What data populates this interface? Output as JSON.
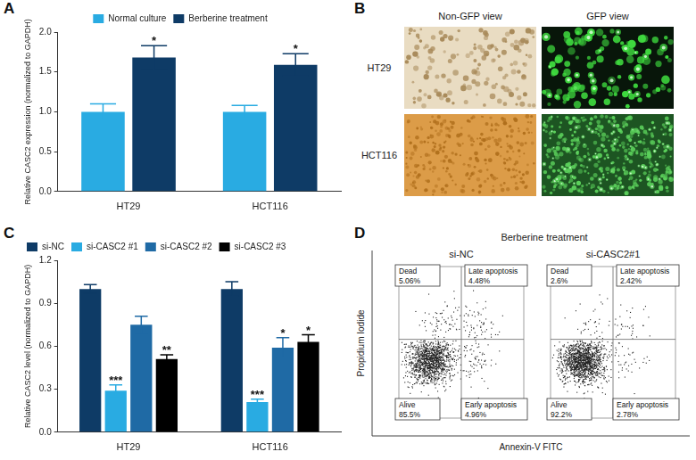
{
  "chart_data": [
    {
      "panel": "A",
      "type": "bar",
      "y_label": "Relative CASC2 expression (normalized to GAPDH)",
      "categories": [
        "HT29",
        "HCT116"
      ],
      "series": [
        {
          "name": "Normal culture",
          "color": "#29abe2",
          "values": [
            1.0,
            1.0
          ],
          "errors": [
            0.1,
            0.08
          ],
          "significance": [
            null,
            null
          ]
        },
        {
          "name": "Berberine treatment",
          "color": "#0e3b66",
          "values": [
            1.68,
            1.59
          ],
          "errors": [
            0.15,
            0.14
          ],
          "significance": [
            "*",
            "*"
          ]
        }
      ],
      "ylim": [
        0,
        2
      ],
      "yticks": [
        {
          "value": 0,
          "label": "0.0"
        },
        {
          "value": 0.5,
          "label": "0.5"
        },
        {
          "value": 1,
          "label": "1.0"
        },
        {
          "value": 1.5,
          "label": "1.5"
        },
        {
          "value": 2,
          "label": "2.0"
        }
      ],
      "grid": false,
      "legend": "top"
    },
    {
      "panel": "C",
      "type": "bar",
      "y_label": "Relative CASC2 level (normalized to GAPDH)",
      "categories": [
        "HT29",
        "HCT116"
      ],
      "series": [
        {
          "name": "si-NC",
          "color": "#0e3b66",
          "values": [
            1.0,
            1.0
          ],
          "errors": [
            0.03,
            0.05
          ],
          "significance": [
            null,
            null
          ]
        },
        {
          "name": "si-CASC2 #1",
          "color": "#29abe2",
          "values": [
            0.29,
            0.21
          ],
          "errors": [
            0.04,
            0.02
          ],
          "significance": [
            "***",
            "***"
          ]
        },
        {
          "name": "si-CASC2 #2",
          "color": "#1f6aa5",
          "values": [
            0.75,
            0.59
          ],
          "errors": [
            0.06,
            0.07
          ],
          "significance": [
            null,
            "*"
          ]
        },
        {
          "name": "si-CASC2 #3",
          "color": "#000000",
          "values": [
            0.51,
            0.63
          ],
          "errors": [
            0.03,
            0.05
          ],
          "significance": [
            "**",
            "*"
          ]
        }
      ],
      "ylim": [
        0,
        1.2
      ],
      "yticks": [
        {
          "value": 0,
          "label": "0.0"
        },
        {
          "value": 0.3,
          "label": "0.3"
        },
        {
          "value": 0.6,
          "label": "0.6"
        },
        {
          "value": 0.9,
          "label": "0.9"
        },
        {
          "value": 1.2,
          "label": "1.2"
        }
      ],
      "grid": false,
      "legend": "top-left"
    }
  ],
  "panel_b": {
    "panel": "B",
    "columns": [
      "Non-GFP view",
      "GFP view"
    ],
    "rows": [
      "HT29",
      "HCT116"
    ]
  },
  "panel_d": {
    "panel": "D",
    "title": "Berberine treatment",
    "x_label": "Annexin-V FITC",
    "y_label": "Propidium Iodide",
    "plots": [
      {
        "title": "si-NC",
        "quadrants": [
          "Dead",
          "Late apoptosis",
          "Alive",
          "Early apoptosis"
        ],
        "values": [
          5.06,
          4.48,
          85.5,
          4.96
        ],
        "value_labels": [
          "5.06%",
          "4.48%",
          "85.5%",
          "4.96%"
        ]
      },
      {
        "title": "si-CASC2#1",
        "quadrants": [
          "Dead",
          "Late apoptosis",
          "Alive",
          "Early apoptosis"
        ],
        "values": [
          2.6,
          2.42,
          92.2,
          2.78
        ],
        "value_labels": [
          "2.6%",
          "2.42%",
          "92.2%",
          "2.78%"
        ]
      }
    ]
  }
}
